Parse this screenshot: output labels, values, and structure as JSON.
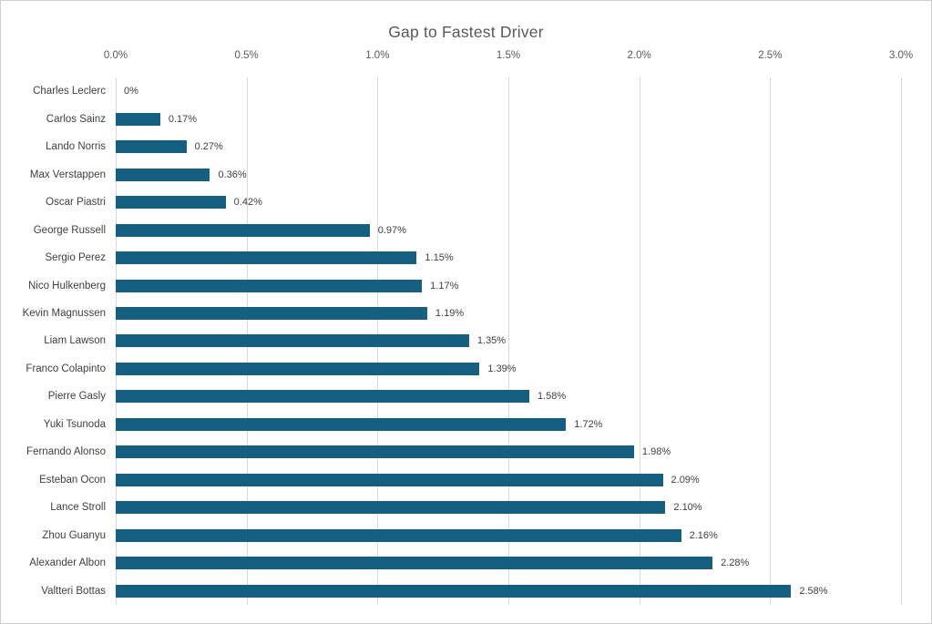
{
  "chart_data": {
    "type": "bar",
    "orientation": "horizontal",
    "title": "Gap to Fastest Driver",
    "categories": [
      "Charles Leclerc",
      "Carlos Sainz",
      "Lando Norris",
      "Max Verstappen",
      "Oscar Piastri",
      "George Russell",
      "Sergio Perez",
      "Nico Hulkenberg",
      "Kevin Magnussen",
      "Liam Lawson",
      "Franco Colapinto",
      "Pierre Gasly",
      "Yuki Tsunoda",
      "Fernando Alonso",
      "Esteban Ocon",
      "Lance Stroll",
      "Zhou Guanyu",
      "Alexander Albon",
      "Valtteri Bottas"
    ],
    "values": [
      0,
      0.17,
      0.27,
      0.36,
      0.42,
      0.97,
      1.15,
      1.17,
      1.19,
      1.35,
      1.39,
      1.58,
      1.72,
      1.98,
      2.09,
      2.1,
      2.16,
      2.28,
      2.58
    ],
    "data_labels": [
      "0%",
      "0.17%",
      "0.27%",
      "0.36%",
      "0.42%",
      "0.97%",
      "1.15%",
      "1.17%",
      "1.19%",
      "1.35%",
      "1.39%",
      "1.58%",
      "1.72%",
      "1.98%",
      "2.09%",
      "2.10%",
      "2.16%",
      "2.28%",
      "2.58%"
    ],
    "x_tick_labels": [
      "0.0%",
      "0.5%",
      "1.0%",
      "1.5%",
      "2.0%",
      "2.5%",
      "3.0%"
    ],
    "x_tick_values": [
      0.0,
      0.5,
      1.0,
      1.5,
      2.0,
      2.5,
      3.0
    ],
    "xlim": [
      0.0,
      3.0
    ],
    "xlabel": "",
    "ylabel": "",
    "grid": "vertical",
    "legend": "none",
    "bar_color": "#156082",
    "gridline_color": "#d9d9d9",
    "title_color": "#595959",
    "label_color": "#404040"
  }
}
